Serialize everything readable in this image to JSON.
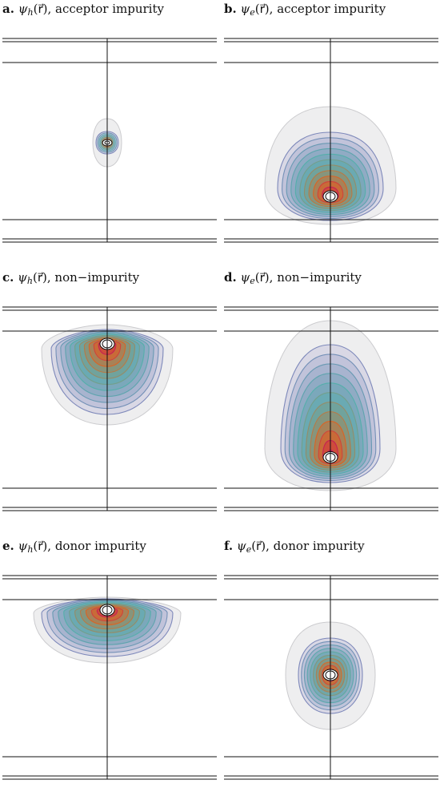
{
  "panels": [
    {
      "letter": "a.",
      "psi": "ψ",
      "sub": "h",
      "arg": "(r⃗)",
      "suffix": ", acceptor impurity",
      "carrier": "hole",
      "impurity": "acceptor"
    },
    {
      "letter": "b.",
      "psi": "ψ",
      "sub": "e",
      "arg": "(r⃗)",
      "suffix": ", acceptor impurity",
      "carrier": "electron",
      "impurity": "acceptor"
    },
    {
      "letter": "c.",
      "psi": "ψ",
      "sub": "h",
      "arg": "(r⃗)",
      "suffix": ", non−impurity",
      "carrier": "hole",
      "impurity": "none"
    },
    {
      "letter": "d.",
      "psi": "ψ",
      "sub": "e",
      "arg": "(r⃗)",
      "suffix": ", non−impurity",
      "carrier": "electron",
      "impurity": "none"
    },
    {
      "letter": "e.",
      "psi": "ψ",
      "sub": "h",
      "arg": "(r⃗)",
      "suffix": ", donor impurity",
      "carrier": "hole",
      "impurity": "donor"
    },
    {
      "letter": "f.",
      "psi": "ψ",
      "sub": "e",
      "arg": "(r⃗)",
      "suffix": ", donor impurity",
      "carrier": "electron",
      "impurity": "donor"
    }
  ],
  "colors": {
    "line": "#111111",
    "shell": "#c9c9cc",
    "contour_outer": "#7a73b8",
    "contour_mid": "#4fb0a8",
    "contour_hot": "#e2621c",
    "core": "#c2185b"
  }
}
